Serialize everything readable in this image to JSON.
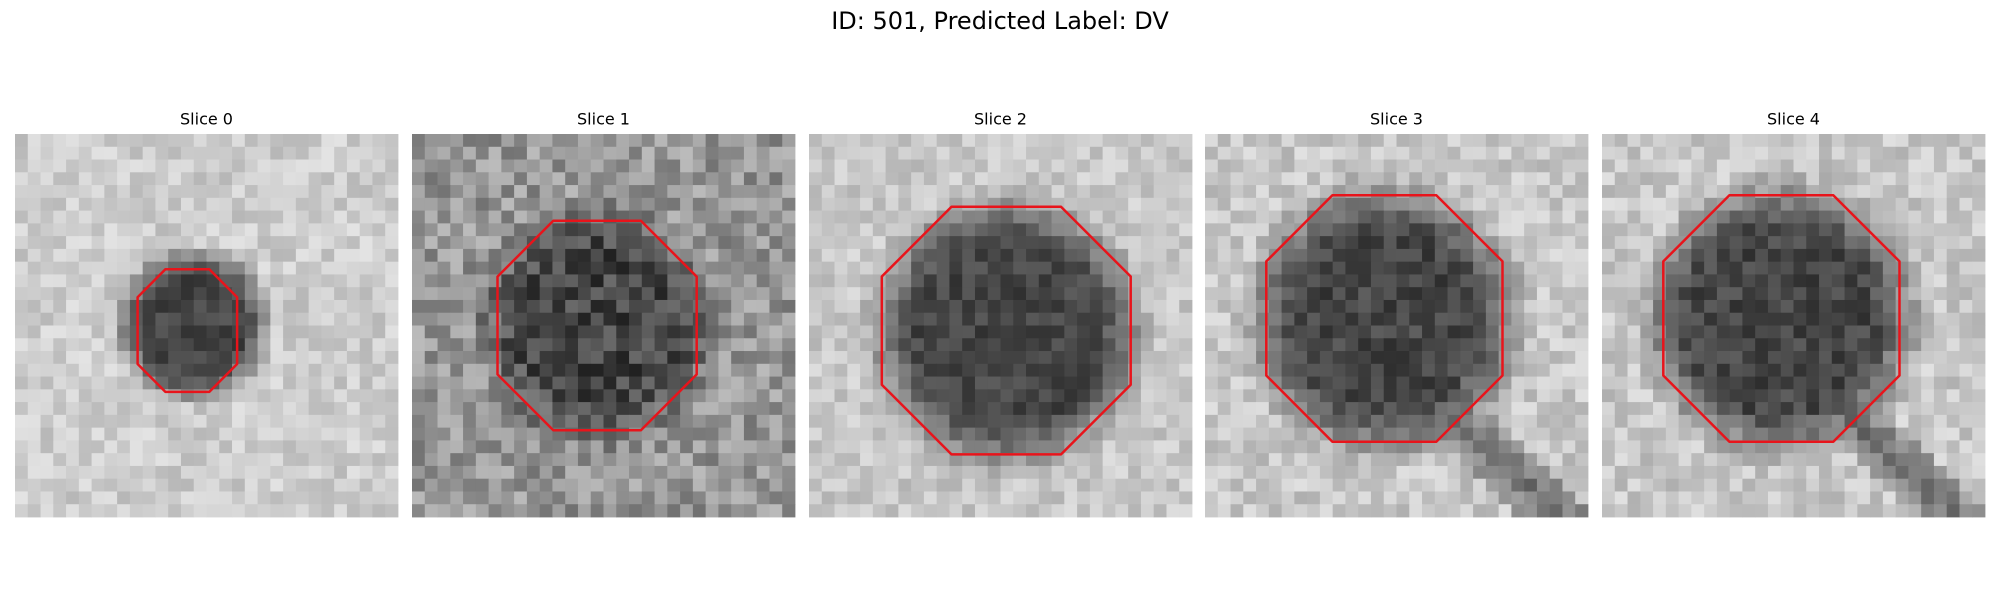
{
  "header": {
    "title": "ID: 501, Predicted Label: DV"
  },
  "panels": [
    {
      "title": "Slice 0"
    },
    {
      "title": "Slice 1"
    },
    {
      "title": "Slice 2"
    },
    {
      "title": "Slice 3"
    },
    {
      "title": "Slice 4"
    }
  ]
}
